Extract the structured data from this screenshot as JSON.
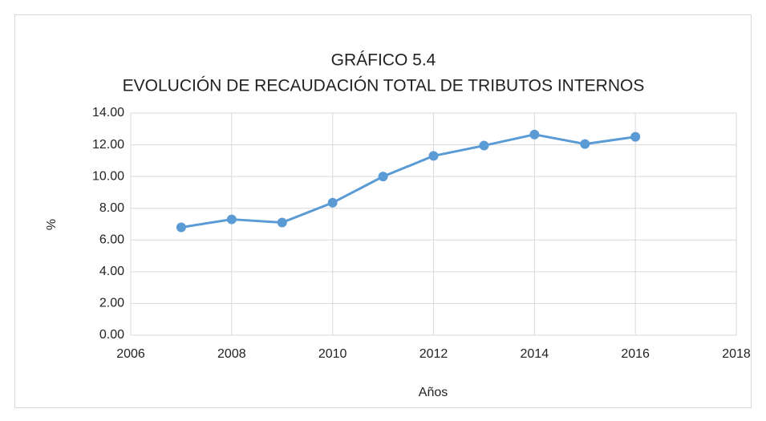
{
  "chart_data": {
    "type": "line",
    "title": "GRÁFICO 5.4",
    "subtitle": "EVOLUCIÓN DE RECAUDACIÓN TOTAL DE TRIBUTOS INTERNOS",
    "x_label": "Años",
    "y_label": "%",
    "x": [
      2007,
      2008,
      2009,
      2010,
      2011,
      2012,
      2013,
      2014,
      2015,
      2016
    ],
    "values": [
      6.8,
      7.3,
      7.1,
      8.35,
      10.0,
      11.3,
      11.95,
      12.65,
      12.05,
      12.5
    ],
    "color": "#5b9bd5",
    "xlim": [
      2006,
      2018
    ],
    "xticks": [
      2006,
      2008,
      2010,
      2012,
      2014,
      2016,
      2018
    ],
    "ylim": [
      0,
      14
    ],
    "yticks": [
      {
        "value": 0,
        "label": "0.00"
      },
      {
        "value": 2,
        "label": "2.00"
      },
      {
        "value": 4,
        "label": "4.00"
      },
      {
        "value": 6,
        "label": "6.00"
      },
      {
        "value": 8,
        "label": "8.00"
      },
      {
        "value": 10,
        "label": "10.00"
      },
      {
        "value": 12,
        "label": "12.00"
      },
      {
        "value": 14,
        "label": "14.00"
      }
    ],
    "grid": true
  }
}
